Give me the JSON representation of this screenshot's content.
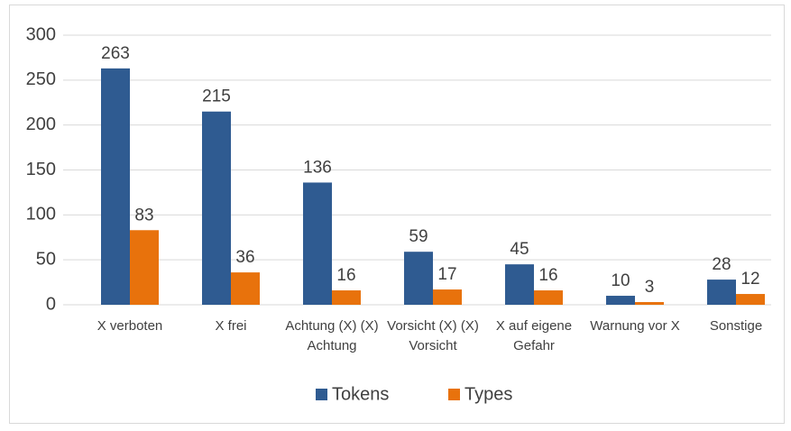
{
  "chart_data": {
    "type": "bar",
    "categories": [
      "X verboten",
      "X frei",
      "Achtung (X) (X) Achtung",
      "Vorsicht (X) (X) Vorsicht",
      "X auf eigene Gefahr",
      "Warnung vor X",
      "Sonstige"
    ],
    "series": [
      {
        "name": "Tokens",
        "color": "#2f5b91",
        "values": [
          263,
          215,
          136,
          59,
          45,
          10,
          28
        ]
      },
      {
        "name": "Types",
        "color": "#e8720c",
        "values": [
          83,
          36,
          16,
          17,
          16,
          3,
          12
        ]
      }
    ],
    "ylim": [
      0,
      300
    ],
    "yticks": [
      0,
      50,
      100,
      150,
      200,
      250,
      300
    ],
    "grid": true,
    "legend": "bottom"
  }
}
